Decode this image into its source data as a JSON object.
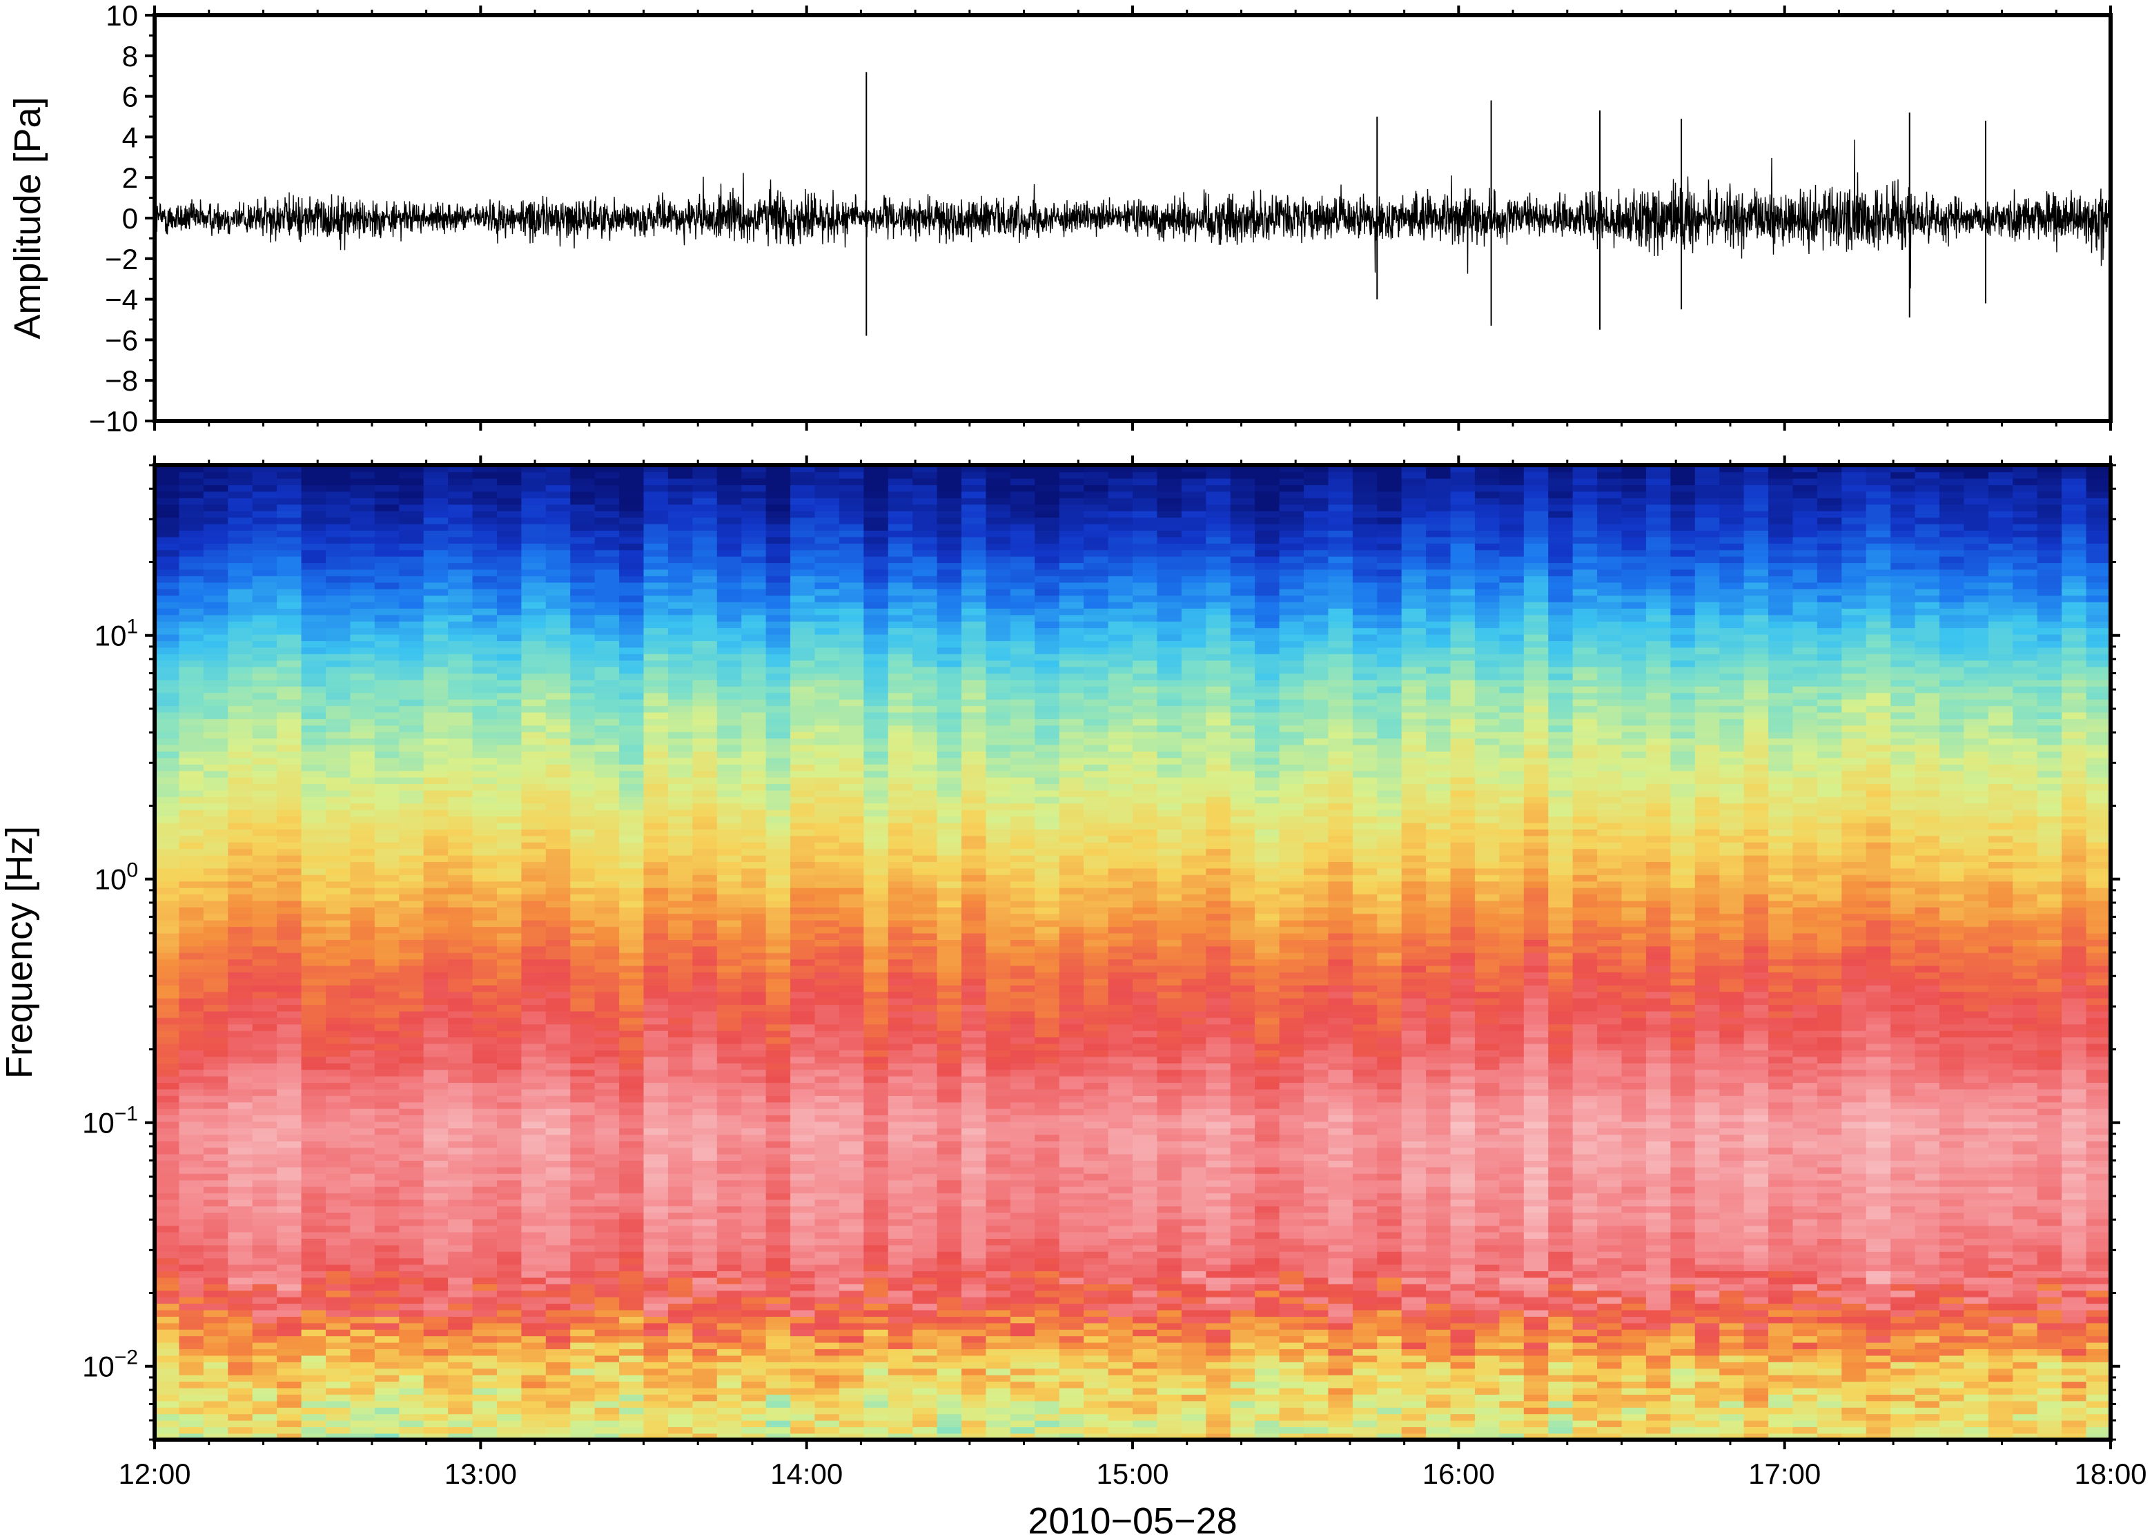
{
  "chart_data": [
    {
      "type": "line",
      "panel": "waveform",
      "ylabel": "Amplitude [Pa]",
      "ylim": [
        -10,
        10
      ],
      "yticks": [
        10,
        8,
        6,
        4,
        2,
        0,
        -2,
        -4,
        -6,
        -8,
        -10
      ],
      "ytick_labels": [
        "10",
        "8",
        "6",
        "4",
        "2",
        "0",
        "−2",
        "−4",
        "−6",
        "−8",
        "−10"
      ],
      "x_range": [
        "12:00",
        "18:00"
      ],
      "trace_color": "#000000",
      "typical_envelope_pa": 1.6,
      "peak_events": [
        {
          "time": "14:11",
          "max": 7.2,
          "min": -5.8
        },
        {
          "time": "15:45",
          "max": 5.0,
          "min": -4.0
        },
        {
          "time": "16:06",
          "max": 5.8,
          "min": -5.3
        },
        {
          "time": "16:26",
          "max": 5.3,
          "min": -5.5
        },
        {
          "time": "16:41",
          "max": 4.9,
          "min": -4.5
        },
        {
          "time": "17:23",
          "max": 5.2,
          "min": -4.9
        },
        {
          "time": "17:37",
          "max": 4.8,
          "min": -4.2
        }
      ],
      "grid": false
    },
    {
      "type": "heatmap",
      "panel": "spectrogram",
      "ylabel": "Frequency [Hz]",
      "xlabel": "2010−05−28",
      "y_scale": "log",
      "ylim": [
        0.005,
        50
      ],
      "yticks": [
        0.01,
        0.1,
        1,
        10
      ],
      "ytick_labels": [
        {
          "base": "10",
          "exp": "−2"
        },
        {
          "base": "10",
          "exp": "−1"
        },
        {
          "base": "10",
          "exp": "0"
        },
        {
          "base": "10",
          "exp": "1"
        }
      ],
      "xticks": [
        "12:00",
        "13:00",
        "14:00",
        "15:00",
        "16:00",
        "17:00",
        "18:00"
      ],
      "colormap": "spectral, low power blue to high power pink/red",
      "colormap_stops": [
        "#08137a",
        "#1236c8",
        "#1c78ee",
        "#3cc4f0",
        "#7ee0c8",
        "#d8f08c",
        "#f6d35a",
        "#f58e3e",
        "#ec4f4f",
        "#f48a8f",
        "#f8c0c2"
      ],
      "grid": false
    }
  ]
}
